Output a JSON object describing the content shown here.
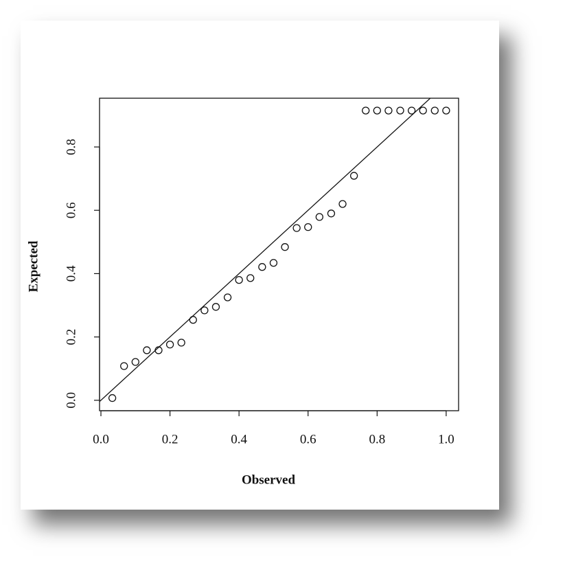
{
  "chart_data": {
    "type": "scatter",
    "xlabel": "Observed",
    "ylabel": "Expected",
    "x": [
      0.033,
      0.067,
      0.1,
      0.133,
      0.167,
      0.2,
      0.233,
      0.267,
      0.3,
      0.333,
      0.367,
      0.4,
      0.433,
      0.467,
      0.5,
      0.533,
      0.567,
      0.6,
      0.633,
      0.667,
      0.7,
      0.733,
      0.767,
      0.8,
      0.833,
      0.867,
      0.9,
      0.933,
      0.967,
      1.0
    ],
    "values": [
      0.007,
      0.108,
      0.121,
      0.158,
      0.158,
      0.176,
      0.182,
      0.254,
      0.284,
      0.295,
      0.325,
      0.38,
      0.386,
      0.421,
      0.434,
      0.484,
      0.544,
      0.547,
      0.579,
      0.59,
      0.62,
      0.709,
      0.915,
      0.915,
      0.915,
      0.915,
      0.915,
      0.915,
      0.915,
      0.915
    ],
    "color": "#111111",
    "reference_line": {
      "slope": 1,
      "intercept": 0
    },
    "xlim": [
      -0.004,
      1.036
    ],
    "ylim": [
      -0.033,
      0.954
    ],
    "xticks": [
      {
        "value": 0,
        "label": "0.0"
      },
      0.2,
      0.4,
      0.6,
      0.8,
      {
        "value": 1,
        "label": "1.0"
      }
    ],
    "yticks": [
      {
        "value": 0,
        "label": "0.0"
      },
      0.2,
      0.4,
      0.6,
      0.8
    ]
  }
}
